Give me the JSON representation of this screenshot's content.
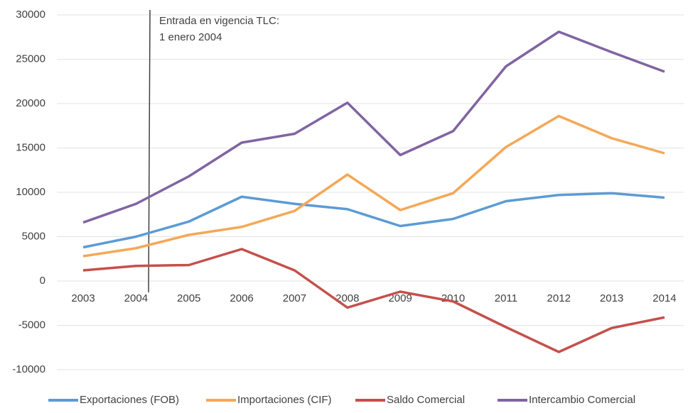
{
  "chart_data": {
    "type": "line",
    "annotation": [
      "Entrada en vigencia TLC:",
      "1 enero 2004"
    ],
    "categories": [
      "2003",
      "2004",
      "2005",
      "2006",
      "2007",
      "2008",
      "2009",
      "2010",
      "2011",
      "2012",
      "2013",
      "2014"
    ],
    "series": [
      {
        "name": "Exportaciones (FOB)",
        "color": "#5b9bd5",
        "values": [
          3800,
          5000,
          6700,
          9500,
          8700,
          8100,
          6200,
          7000,
          9000,
          9700,
          9900,
          9400
        ]
      },
      {
        "name": "Importaciones (CIF)",
        "color": "#f4a857",
        "values": [
          2800,
          3700,
          5200,
          6100,
          7900,
          12000,
          8000,
          9900,
          15100,
          18600,
          16100,
          14400
        ]
      },
      {
        "name": "Saldo Comercial",
        "color": "#c5504b",
        "values": [
          1200,
          1700,
          1800,
          3600,
          1200,
          -3000,
          -1200,
          -2300,
          -5200,
          -8000,
          -5300,
          -4100
        ]
      },
      {
        "name": "Intercambio Comercial",
        "color": "#8064a2",
        "values": [
          6600,
          8700,
          11800,
          15600,
          16600,
          20100,
          14200,
          16900,
          24200,
          28100,
          25800,
          23600
        ]
      }
    ],
    "ylim": [
      -10000,
      30000
    ],
    "yticks": [
      -10000,
      -5000,
      0,
      5000,
      10000,
      15000,
      20000,
      25000,
      30000
    ],
    "grid": true,
    "legend": "bottom"
  }
}
